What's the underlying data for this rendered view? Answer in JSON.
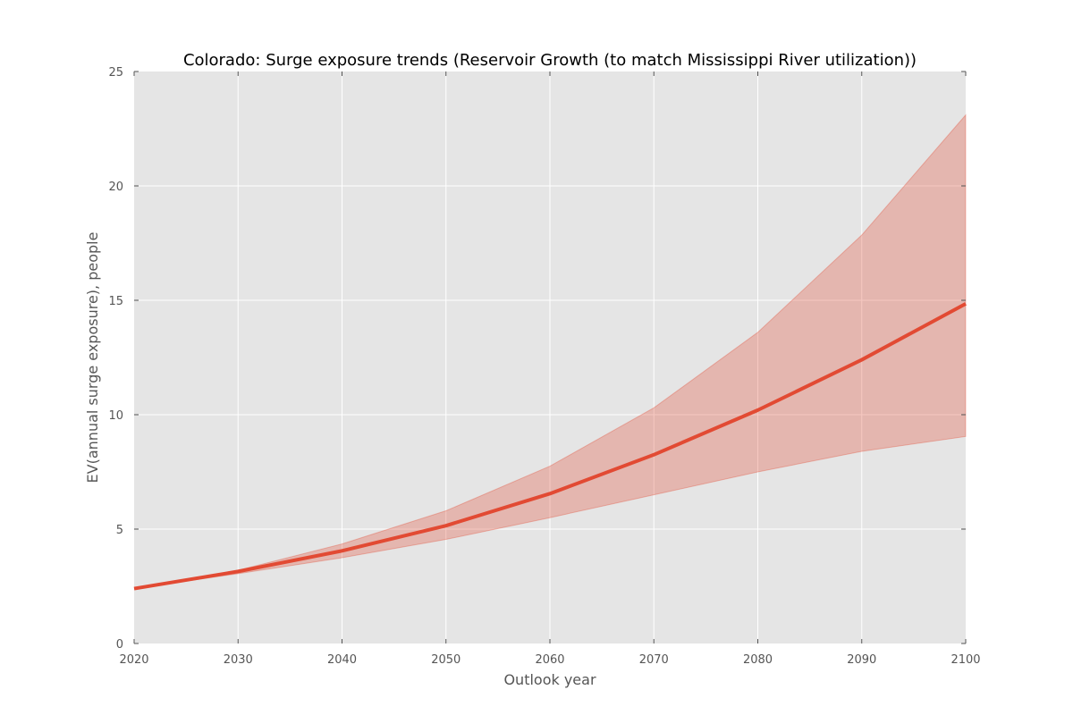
{
  "chart_data": {
    "type": "line",
    "title": "Colorado: Surge exposure trends (Reservoir Growth (to match Mississippi River utilization))",
    "xlabel": "Outlook year",
    "ylabel": "EV(annual surge exposure), people",
    "xlim": [
      2020,
      2100
    ],
    "ylim": [
      0,
      25
    ],
    "x_ticks": [
      2020,
      2030,
      2040,
      2050,
      2060,
      2070,
      2080,
      2090,
      2100
    ],
    "y_ticks": [
      0,
      5,
      10,
      15,
      20,
      25
    ],
    "grid": true,
    "legend": "none",
    "x": [
      2020,
      2030,
      2040,
      2050,
      2060,
      2070,
      2080,
      2090,
      2100
    ],
    "series": [
      {
        "values": [
          2.4,
          3.15,
          4.05,
          5.15,
          6.55,
          8.25,
          10.2,
          12.4,
          14.85
        ],
        "band_upper": [
          2.4,
          3.2,
          4.35,
          5.8,
          7.75,
          10.3,
          13.6,
          17.85,
          23.1
        ],
        "band_lower": [
          2.4,
          3.05,
          3.75,
          4.55,
          5.5,
          6.5,
          7.5,
          8.4,
          9.05
        ],
        "color": "#e24a33",
        "band_color": "#e24a33"
      }
    ],
    "colors": {
      "plot_background": "#e5e5e5",
      "grid": "#ffffff",
      "line": "#e24a33"
    }
  }
}
